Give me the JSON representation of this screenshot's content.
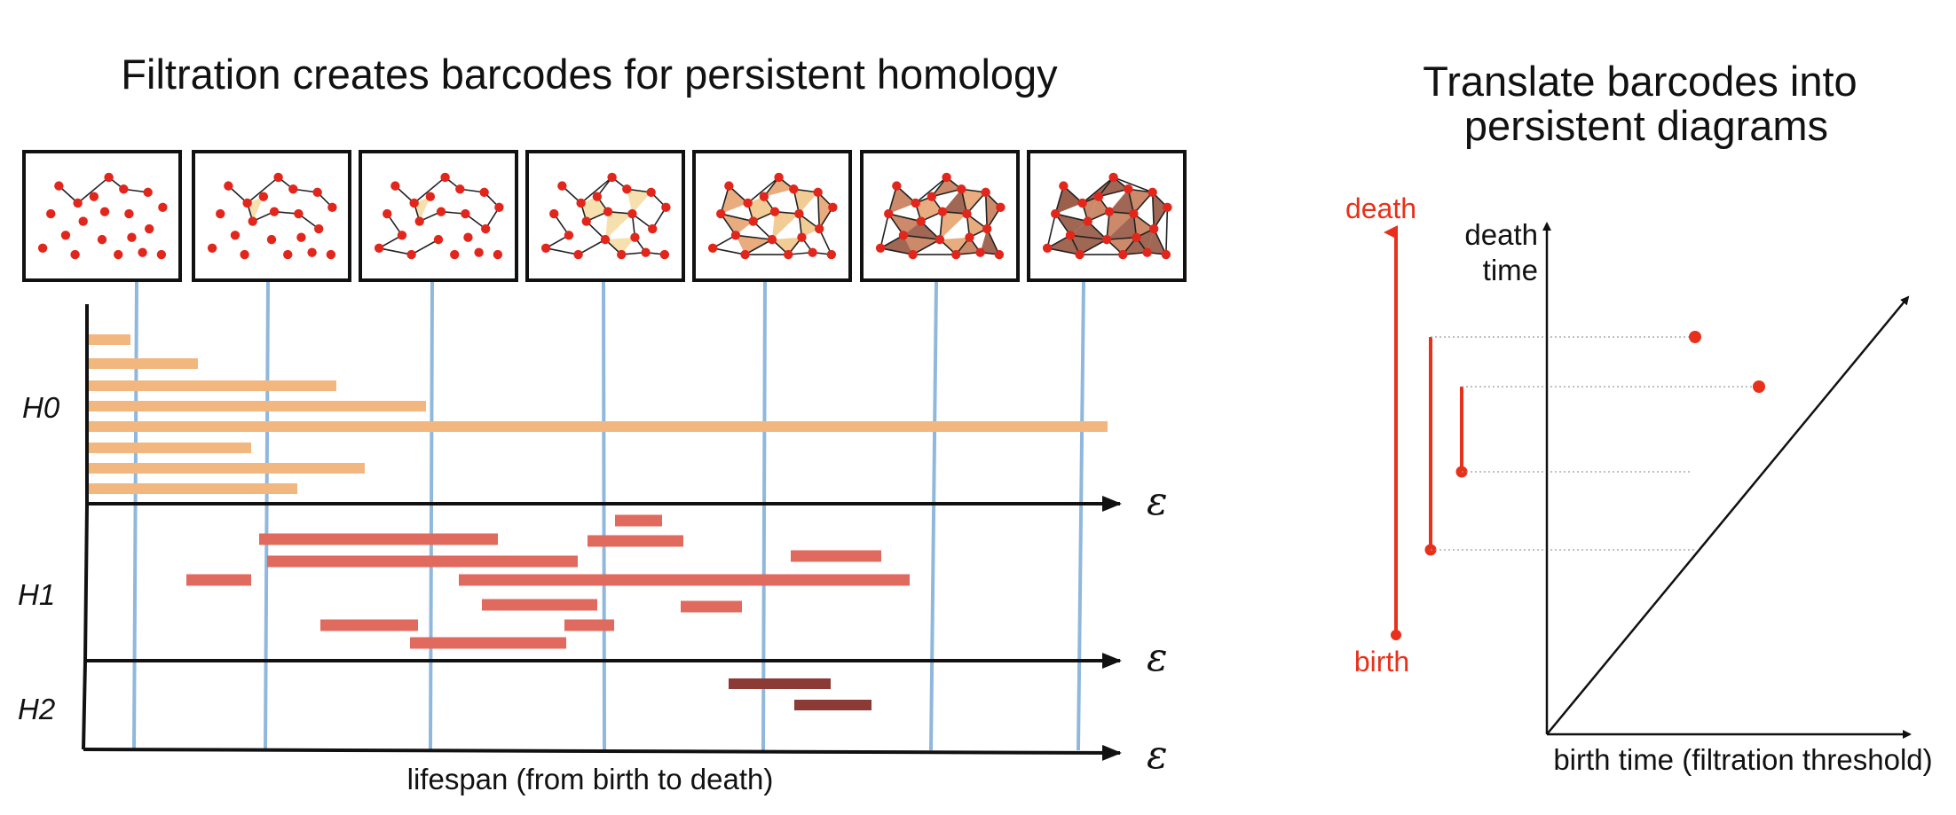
{
  "left_panel": {
    "title": "Filtration creates barcodes for persistent homology",
    "h0_label": "H0",
    "h1_label": "H1",
    "h2_label": "H2",
    "epsilon_symbol": "ε",
    "x_caption": "lifespan (from birth to death)",
    "filtration_stages": 7
  },
  "right_panel": {
    "title_line1": "Translate barcodes into",
    "title_line2": "persistent diagrams",
    "death_label": "death",
    "birth_label": "birth",
    "y_axis_line1": "death",
    "y_axis_line2": "time",
    "x_axis_label": "birth time (filtration threshold)"
  },
  "colors": {
    "h0_bar": "#f2b77f",
    "h1_bar": "#e06a5e",
    "h2_bar": "#8c3a36",
    "slice_line": "#8fb8dc",
    "accent_red": "#e8311a"
  }
}
